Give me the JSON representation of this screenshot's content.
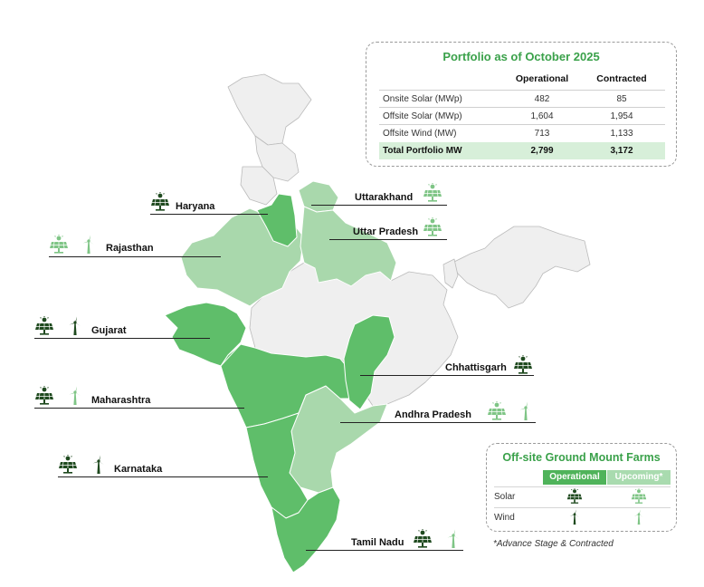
{
  "colors": {
    "operational": "#5fbe6a",
    "upcoming": "#a9d8ac",
    "other_states": "#efefef",
    "state_border": "#bbbbbb",
    "title_green": "#3aa14a",
    "total_row": "#d7efd9"
  },
  "portfolio": {
    "title": "Portfolio as of October 2025",
    "headers": [
      "Operational",
      "Contracted"
    ],
    "rows": [
      {
        "label": "Onsite Solar (MWp)",
        "operational": "482",
        "contracted": "85"
      },
      {
        "label": "Offsite Solar (MWp)",
        "operational": "1,604",
        "contracted": "1,954"
      },
      {
        "label": "Offsite Wind (MW)",
        "operational": "713",
        "contracted": "1,133"
      }
    ],
    "total": {
      "label": "Total Portfolio MW",
      "operational": "2,799",
      "contracted": "3,172"
    }
  },
  "legend": {
    "title": "Off-site Ground Mount Farms",
    "operational_label": "Operational",
    "upcoming_label": "Upcoming*",
    "rows": [
      {
        "label": "Solar",
        "icon": "solar-icon"
      },
      {
        "label": "Wind",
        "icon": "wind-icon"
      }
    ],
    "note": "*Advance Stage & Contracted"
  },
  "states": [
    {
      "name": "Haryana",
      "status": "operational",
      "icons": [
        "solar-operational"
      ]
    },
    {
      "name": "Uttarakhand",
      "status": "upcoming",
      "icons": [
        "solar-upcoming"
      ]
    },
    {
      "name": "Uttar Pradesh",
      "status": "upcoming",
      "icons": [
        "solar-upcoming"
      ]
    },
    {
      "name": "Rajasthan",
      "status": "upcoming",
      "icons": [
        "solar-upcoming",
        "wind-upcoming"
      ]
    },
    {
      "name": "Gujarat",
      "status": "operational",
      "icons": [
        "solar-operational",
        "wind-operational"
      ]
    },
    {
      "name": "Chhattisgarh",
      "status": "operational",
      "icons": [
        "solar-operational"
      ]
    },
    {
      "name": "Maharashtra",
      "status": "operational",
      "icons": [
        "solar-operational",
        "wind-upcoming"
      ]
    },
    {
      "name": "Andhra Pradesh",
      "status": "upcoming",
      "icons": [
        "solar-upcoming",
        "wind-upcoming"
      ]
    },
    {
      "name": "Karnataka",
      "status": "operational",
      "icons": [
        "solar-operational",
        "wind-operational"
      ]
    },
    {
      "name": "Tamil Nadu",
      "status": "operational",
      "icons": [
        "solar-operational",
        "wind-upcoming"
      ]
    }
  ]
}
